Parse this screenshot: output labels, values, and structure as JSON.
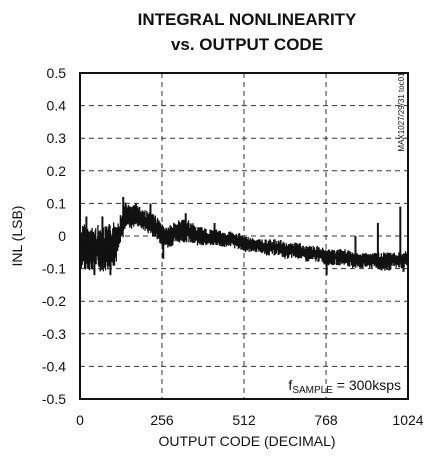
{
  "chart_data": {
    "type": "line",
    "title": "INTEGRAL NONLINEARITY",
    "subtitle": "vs. OUTPUT CODE",
    "xlabel": "OUTPUT CODE (DECIMAL)",
    "ylabel": "INL (LSB)",
    "xlim": [
      0,
      1024
    ],
    "ylim": [
      -0.5,
      0.5
    ],
    "x_ticks": [
      0,
      256,
      512,
      768,
      1024
    ],
    "y_ticks": [
      -0.5,
      -0.4,
      -0.3,
      -0.2,
      -0.1,
      0,
      0.1,
      0.2,
      0.3,
      0.4,
      0.5
    ],
    "y_tick_labels": [
      "-0.5",
      "-0.4",
      "-0.3",
      "-0.2",
      "-0.1",
      "0",
      "0.1",
      "0.2",
      "0.3",
      "0.4",
      "0.5"
    ],
    "grid": true,
    "grid_style": "dashed",
    "line_color": "#111111",
    "annotation": {
      "main": "f",
      "sub": "SAMPLE",
      "rest": " = 300ksps"
    },
    "watermark": "MAX1027/29/31 toc01",
    "series": [
      {
        "x": [
          0,
          16,
          32,
          48,
          64,
          80,
          96,
          112,
          128,
          144,
          160,
          176,
          192,
          208,
          224,
          240,
          256,
          272,
          288,
          304,
          320,
          336,
          352,
          368,
          384,
          400,
          416,
          432,
          448,
          464,
          480,
          496,
          512,
          528,
          544,
          560,
          576,
          592,
          608,
          624,
          640,
          656,
          672,
          688,
          704,
          720,
          736,
          752,
          768,
          784,
          800,
          816,
          832,
          848,
          864,
          880,
          896,
          912,
          928,
          944,
          960,
          976,
          992,
          1008,
          1024
        ],
        "y": [
          -0.04,
          -0.03,
          -0.05,
          -0.04,
          -0.03,
          -0.04,
          -0.03,
          -0.02,
          0.02,
          0.07,
          0.06,
          0.07,
          0.06,
          0.05,
          0.04,
          0.03,
          0.01,
          0.0,
          0.01,
          0.02,
          0.02,
          0.02,
          0.01,
          0.01,
          0.01,
          0.0,
          0.0,
          0.0,
          -0.01,
          0.0,
          -0.01,
          -0.01,
          -0.01,
          -0.02,
          -0.02,
          -0.02,
          -0.03,
          -0.03,
          -0.03,
          -0.03,
          -0.04,
          -0.04,
          -0.04,
          -0.04,
          -0.05,
          -0.05,
          -0.05,
          -0.05,
          -0.06,
          -0.06,
          -0.06,
          -0.06,
          -0.06,
          -0.07,
          -0.07,
          -0.07,
          -0.07,
          -0.07,
          -0.07,
          -0.08,
          -0.08,
          -0.07,
          -0.07,
          -0.07,
          -0.06
        ],
        "band_top": [
          0.03,
          0.04,
          0.03,
          0.03,
          0.04,
          0.03,
          0.04,
          0.05,
          0.07,
          0.11,
          0.09,
          0.1,
          0.09,
          0.08,
          0.07,
          0.06,
          0.04,
          0.03,
          0.04,
          0.05,
          0.05,
          0.05,
          0.04,
          0.03,
          0.03,
          0.02,
          0.02,
          0.02,
          0.01,
          0.02,
          0.01,
          0.01,
          0.0,
          0.0,
          -0.01,
          -0.01,
          -0.01,
          -0.01,
          -0.01,
          -0.01,
          -0.02,
          -0.02,
          -0.02,
          -0.02,
          -0.03,
          -0.03,
          -0.03,
          -0.03,
          -0.04,
          -0.04,
          -0.04,
          -0.04,
          -0.04,
          -0.05,
          -0.05,
          -0.05,
          -0.05,
          -0.05,
          -0.05,
          -0.05,
          -0.05,
          -0.05,
          -0.05,
          -0.05,
          -0.04
        ],
        "band_bottom": [
          -0.1,
          -0.11,
          -0.11,
          -0.1,
          -0.11,
          -0.11,
          -0.1,
          -0.09,
          -0.03,
          0.03,
          0.02,
          0.03,
          0.02,
          0.01,
          0.0,
          -0.01,
          -0.03,
          -0.04,
          -0.03,
          -0.02,
          -0.02,
          -0.02,
          -0.03,
          -0.03,
          -0.03,
          -0.03,
          -0.03,
          -0.03,
          -0.04,
          -0.03,
          -0.04,
          -0.04,
          -0.05,
          -0.05,
          -0.05,
          -0.05,
          -0.06,
          -0.06,
          -0.06,
          -0.06,
          -0.07,
          -0.07,
          -0.07,
          -0.07,
          -0.08,
          -0.08,
          -0.08,
          -0.08,
          -0.09,
          -0.09,
          -0.09,
          -0.09,
          -0.09,
          -0.1,
          -0.1,
          -0.1,
          -0.1,
          -0.1,
          -0.1,
          -0.11,
          -0.11,
          -0.1,
          -0.1,
          -0.1,
          -0.09
        ],
        "spikes": [
          {
            "x": 20,
            "y": 0.06
          },
          {
            "x": 45,
            "y": -0.12
          },
          {
            "x": 70,
            "y": 0.06
          },
          {
            "x": 95,
            "y": -0.12
          },
          {
            "x": 135,
            "y": 0.12
          },
          {
            "x": 175,
            "y": 0.1
          },
          {
            "x": 220,
            "y": 0.1
          },
          {
            "x": 260,
            "y": -0.07
          },
          {
            "x": 330,
            "y": 0.07
          },
          {
            "x": 420,
            "y": 0.04
          },
          {
            "x": 560,
            "y": -0.01
          },
          {
            "x": 770,
            "y": -0.12
          },
          {
            "x": 860,
            "y": 0.0
          },
          {
            "x": 930,
            "y": 0.04
          },
          {
            "x": 1000,
            "y": 0.09
          },
          {
            "x": 1010,
            "y": -0.11
          }
        ]
      }
    ]
  }
}
